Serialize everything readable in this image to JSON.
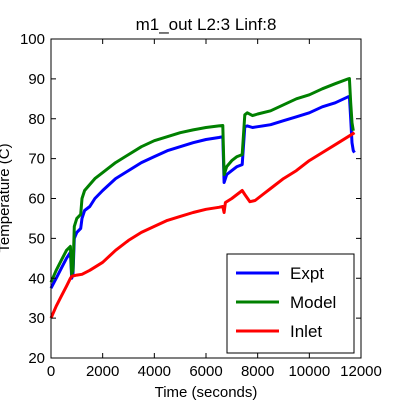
{
  "chart_data": {
    "type": "line",
    "title": "m1_out L2:3 Linf:8",
    "xlabel": "Time (seconds)",
    "ylabel": "Temperature (C)",
    "xlim": [
      0,
      12000
    ],
    "ylim": [
      20,
      100
    ],
    "x_ticks": [
      0,
      2000,
      4000,
      6000,
      8000,
      10000,
      12000
    ],
    "y_ticks": [
      20,
      30,
      40,
      50,
      60,
      70,
      80,
      90,
      100
    ],
    "grid": false,
    "legend_position": "lower-right",
    "series": [
      {
        "name": "Expt",
        "color": "#0000ff",
        "points": [
          [
            0,
            37.5
          ],
          [
            200,
            40
          ],
          [
            400,
            42.5
          ],
          [
            600,
            45
          ],
          [
            750,
            46.5
          ],
          [
            800,
            40
          ],
          [
            850,
            41
          ],
          [
            900,
            50
          ],
          [
            1000,
            51.5
          ],
          [
            1150,
            52.5
          ],
          [
            1200,
            55
          ],
          [
            1300,
            57
          ],
          [
            1500,
            58
          ],
          [
            1700,
            60
          ],
          [
            2000,
            62
          ],
          [
            2500,
            65
          ],
          [
            3000,
            67
          ],
          [
            3500,
            69
          ],
          [
            4000,
            70.5
          ],
          [
            4500,
            72
          ],
          [
            5000,
            73
          ],
          [
            5500,
            74
          ],
          [
            6000,
            74.8
          ],
          [
            6500,
            75.3
          ],
          [
            6650,
            75.5
          ],
          [
            6700,
            64
          ],
          [
            6800,
            66
          ],
          [
            7000,
            67
          ],
          [
            7200,
            68
          ],
          [
            7400,
            68.5
          ],
          [
            7500,
            78
          ],
          [
            7600,
            78.2
          ],
          [
            7800,
            77.8
          ],
          [
            8000,
            78
          ],
          [
            8500,
            78.5
          ],
          [
            9000,
            79.5
          ],
          [
            9500,
            80.5
          ],
          [
            10000,
            81.5
          ],
          [
            10500,
            83
          ],
          [
            11000,
            84
          ],
          [
            11500,
            85.5
          ],
          [
            11550,
            85.6
          ],
          [
            11600,
            80
          ],
          [
            11650,
            74
          ],
          [
            11700,
            72
          ],
          [
            11750,
            71.5
          ]
        ]
      },
      {
        "name": "Model",
        "color": "#008000",
        "points": [
          [
            0,
            39
          ],
          [
            200,
            42
          ],
          [
            400,
            44.5
          ],
          [
            600,
            47
          ],
          [
            750,
            48
          ],
          [
            800,
            41
          ],
          [
            850,
            42
          ],
          [
            900,
            53
          ],
          [
            1000,
            55
          ],
          [
            1150,
            56
          ],
          [
            1200,
            60
          ],
          [
            1300,
            62
          ],
          [
            1500,
            63.5
          ],
          [
            1700,
            65
          ],
          [
            2000,
            66.5
          ],
          [
            2500,
            69
          ],
          [
            3000,
            71
          ],
          [
            3500,
            73
          ],
          [
            4000,
            74.5
          ],
          [
            4500,
            75.5
          ],
          [
            5000,
            76.5
          ],
          [
            5500,
            77.2
          ],
          [
            6000,
            77.8
          ],
          [
            6500,
            78.2
          ],
          [
            6650,
            78.3
          ],
          [
            6700,
            66
          ],
          [
            6800,
            68
          ],
          [
            7000,
            69.5
          ],
          [
            7200,
            70.5
          ],
          [
            7400,
            71
          ],
          [
            7500,
            81
          ],
          [
            7600,
            81.5
          ],
          [
            7800,
            80.8
          ],
          [
            8000,
            81.2
          ],
          [
            8500,
            82
          ],
          [
            9000,
            83.5
          ],
          [
            9500,
            85
          ],
          [
            10000,
            86
          ],
          [
            10500,
            87.5
          ],
          [
            11000,
            88.8
          ],
          [
            11500,
            90
          ],
          [
            11550,
            90.1
          ],
          [
            11600,
            84
          ],
          [
            11650,
            79
          ],
          [
            11700,
            77
          ]
        ]
      },
      {
        "name": "Inlet",
        "color": "#ff0000",
        "points": [
          [
            0,
            30
          ],
          [
            200,
            33
          ],
          [
            400,
            35.5
          ],
          [
            600,
            38
          ],
          [
            750,
            40
          ],
          [
            800,
            40.5
          ],
          [
            1000,
            40.8
          ],
          [
            1200,
            41
          ],
          [
            1500,
            42
          ],
          [
            2000,
            44
          ],
          [
            2500,
            47
          ],
          [
            3000,
            49.5
          ],
          [
            3500,
            51.5
          ],
          [
            4000,
            53
          ],
          [
            4500,
            54.5
          ],
          [
            5000,
            55.5
          ],
          [
            5500,
            56.5
          ],
          [
            6000,
            57.3
          ],
          [
            6500,
            57.8
          ],
          [
            6650,
            58
          ],
          [
            6700,
            56.5
          ],
          [
            6750,
            59
          ],
          [
            7000,
            60
          ],
          [
            7200,
            61
          ],
          [
            7400,
            62
          ],
          [
            7500,
            61
          ],
          [
            7700,
            59.2
          ],
          [
            7900,
            59.5
          ],
          [
            8200,
            61
          ],
          [
            8500,
            62.5
          ],
          [
            9000,
            65
          ],
          [
            9500,
            67
          ],
          [
            10000,
            69.5
          ],
          [
            10500,
            71.5
          ],
          [
            11000,
            73.5
          ],
          [
            11500,
            75.5
          ],
          [
            11750,
            76.5
          ]
        ]
      }
    ]
  }
}
